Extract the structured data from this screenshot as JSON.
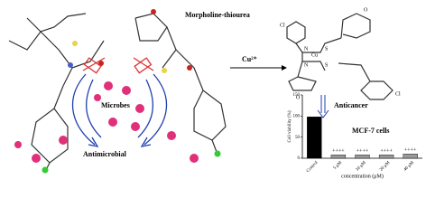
{
  "labels": {
    "ligand": "Morpholine-thiourea",
    "metal": "Cu²⁺",
    "microbes": "Microbes",
    "antimicrobial": "Antimicrobial",
    "anticancer": "Anticancer",
    "cells": "MCF-7 cells"
  },
  "complex_atoms": [
    "O",
    "Cl",
    "N",
    "S",
    "Cu",
    "N",
    "S",
    "Cl",
    "O"
  ],
  "chart_data": {
    "type": "bar",
    "ylabel": "Cell viability (%)",
    "xlabel": "concentration (μM)",
    "categories": [
      "Control",
      "5 μM",
      "10 μM",
      "20 μM",
      "40 μM"
    ],
    "values": [
      98,
      8,
      8,
      8,
      10
    ],
    "annotations": [
      null,
      "++++",
      "++++",
      "++++",
      "++++"
    ],
    "colors": [
      "#000000",
      "#9a9a9a",
      "#9a9a9a",
      "#9a9a9a",
      "#9a9a9a"
    ],
    "ylim": [
      0,
      150
    ],
    "yticks": [
      0,
      50,
      100,
      150
    ]
  }
}
